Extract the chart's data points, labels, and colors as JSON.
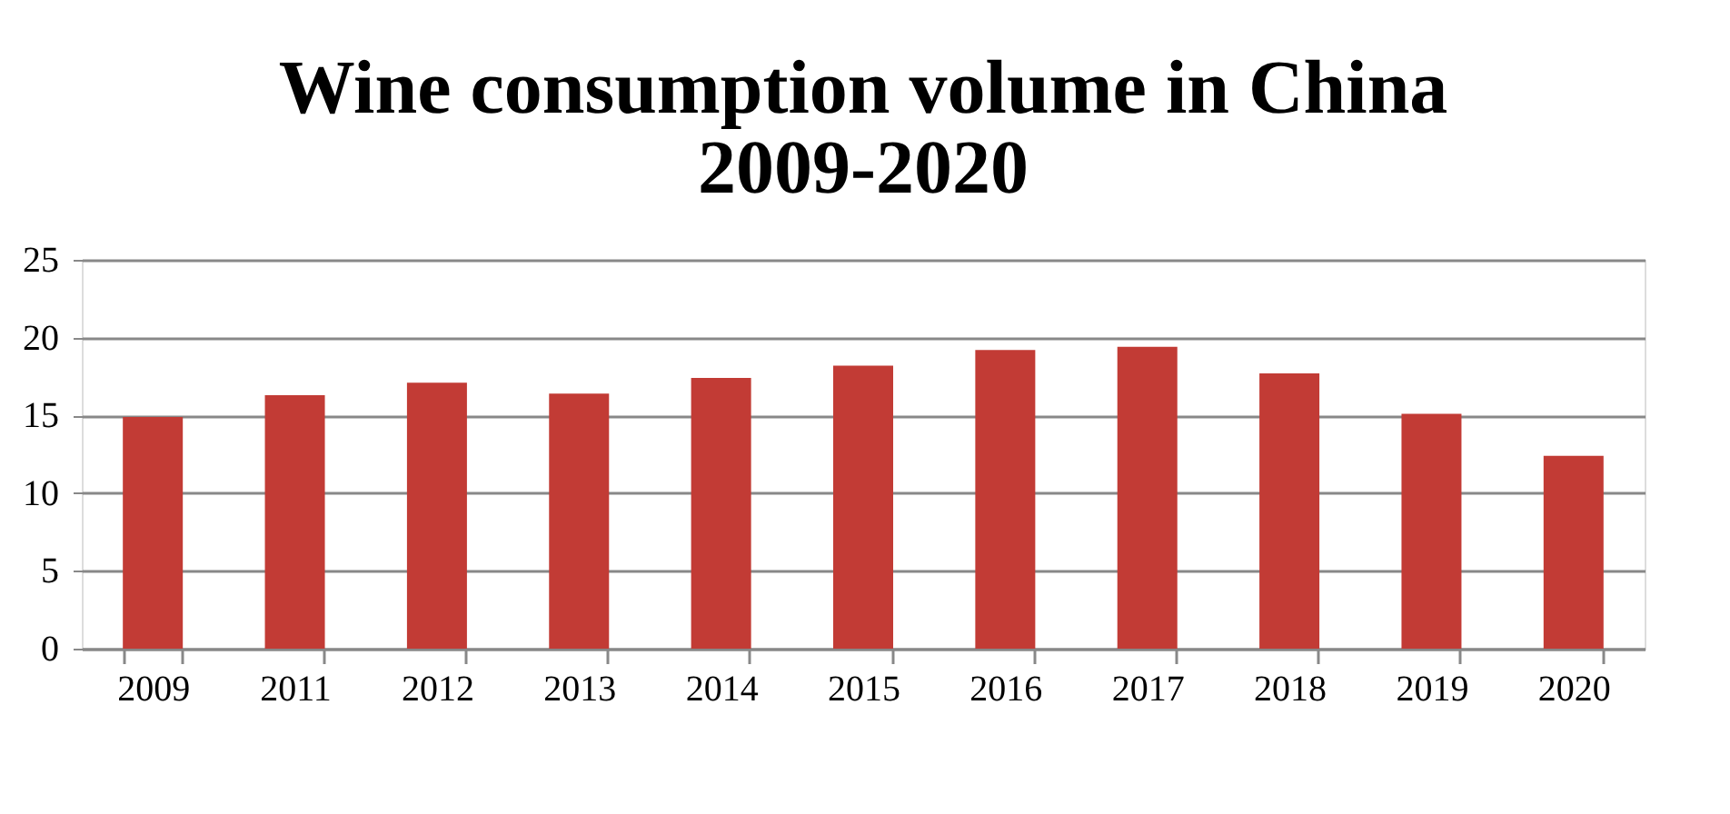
{
  "chart_data": {
    "type": "bar",
    "title": [
      "Wine consumption volume in China",
      "2009-2020"
    ],
    "categories": [
      "2009",
      "2011",
      "2012",
      "2013",
      "2014",
      "2015",
      "2016",
      "2017",
      "2018",
      "2019",
      "2020"
    ],
    "values": [
      14.9,
      16.3,
      17.1,
      16.4,
      17.4,
      18.2,
      19.2,
      19.4,
      17.7,
      15.1,
      12.4
    ],
    "color": "#c23b35",
    "ylim": [
      0,
      25
    ],
    "yticks": [
      0,
      5,
      10,
      15,
      20,
      25
    ],
    "grid": "y"
  }
}
